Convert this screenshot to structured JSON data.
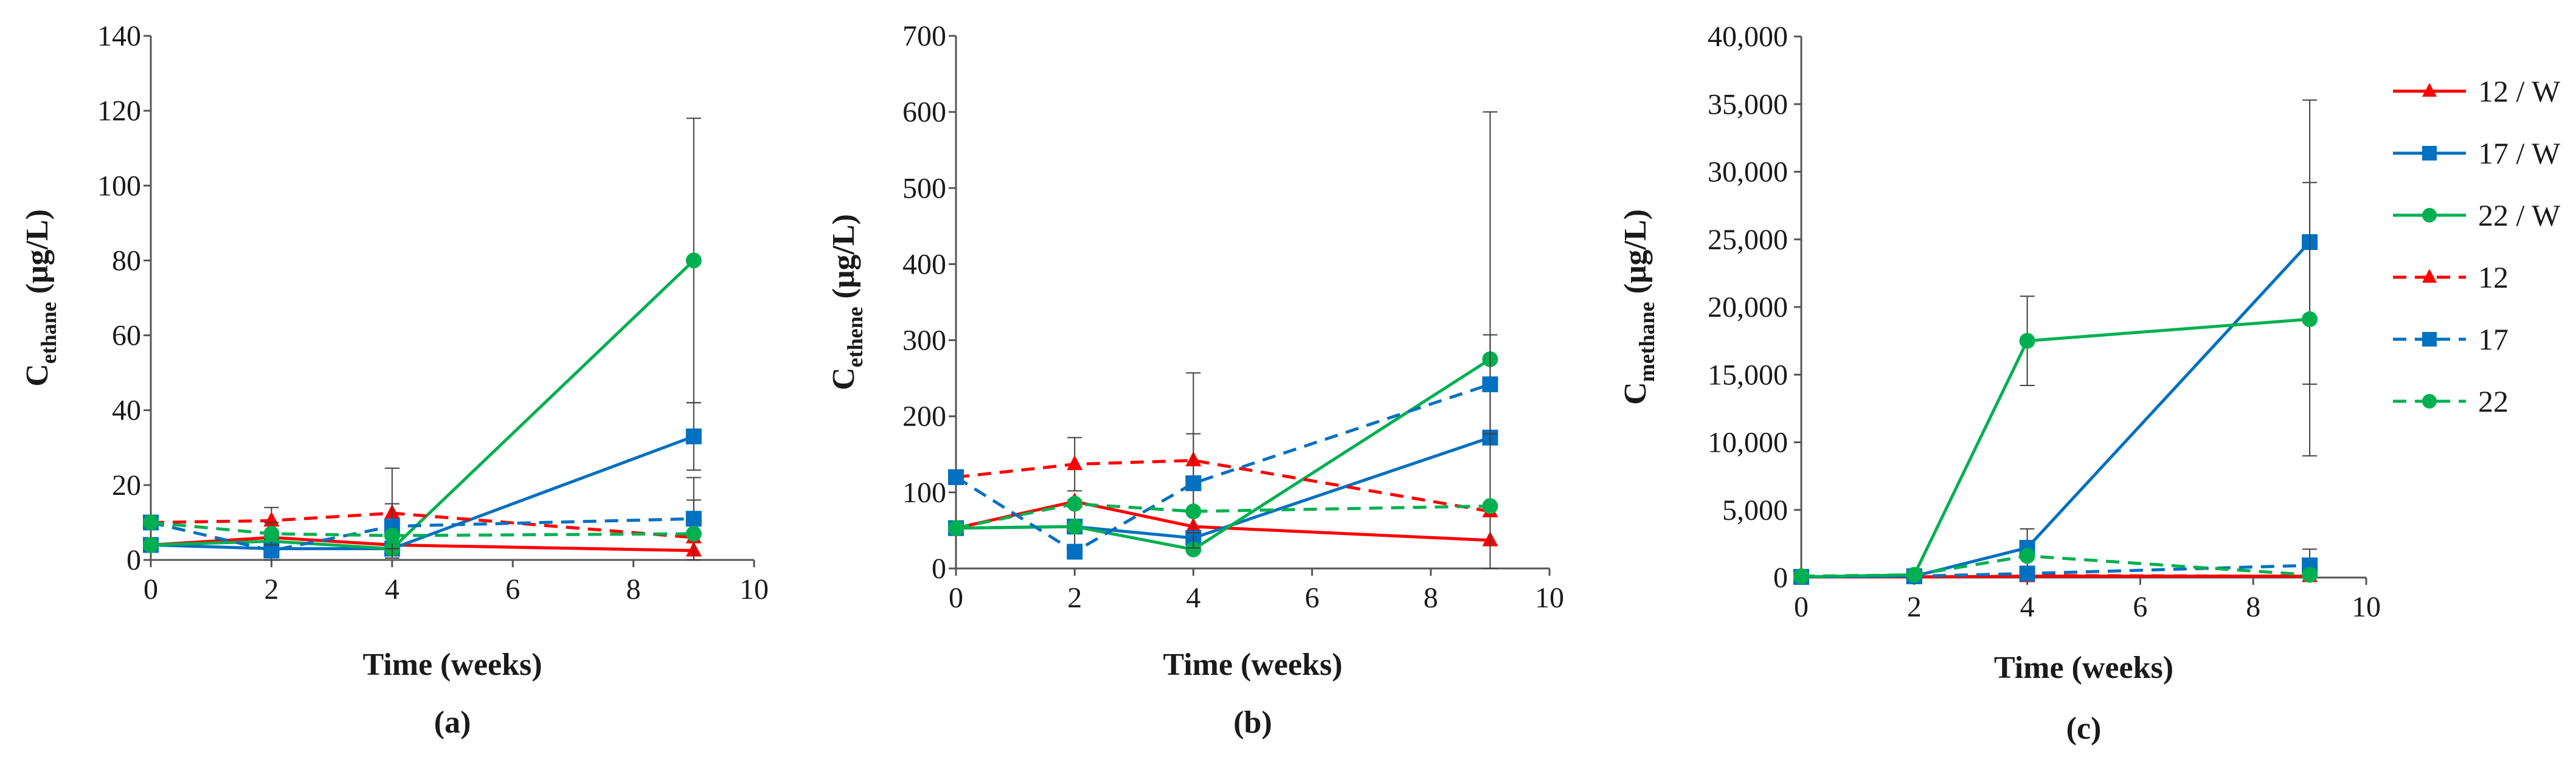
{
  "colors": {
    "red": "#ff0000",
    "blue": "#0070c0",
    "green": "#00b050",
    "axis": "#555555",
    "error": "#404040",
    "text": "#1a1a1a"
  },
  "legend": [
    {
      "label": "12 / W",
      "color": "red",
      "dashed": false,
      "marker": "triangle"
    },
    {
      "label": "17 / W",
      "color": "blue",
      "dashed": false,
      "marker": "square"
    },
    {
      "label": "22 / W",
      "color": "green",
      "dashed": false,
      "marker": "circle"
    },
    {
      "label": "12",
      "color": "red",
      "dashed": true,
      "marker": "triangle"
    },
    {
      "label": "17",
      "color": "blue",
      "dashed": true,
      "marker": "square"
    },
    {
      "label": "22",
      "color": "green",
      "dashed": true,
      "marker": "circle"
    }
  ],
  "chart_data": [
    {
      "type": "line",
      "panel_label": "(a)",
      "xlabel": "Time (weeks)",
      "ylabel_main": "C",
      "ylabel_sub": "ethane",
      "ylabel_unit": " (μg/L)",
      "xlim": [
        0,
        10
      ],
      "ylim": [
        0,
        140
      ],
      "xticks": [
        "0",
        "2",
        "4",
        "6",
        "8",
        "10"
      ],
      "yticks": [
        "0",
        "20",
        "40",
        "60",
        "80",
        "100",
        "120",
        "140"
      ],
      "x": [
        0,
        2,
        4,
        9
      ],
      "series": [
        {
          "name": "12 / W",
          "color": "red",
          "dashed": false,
          "marker": "triangle",
          "values": [
            4,
            6,
            4,
            2.5
          ],
          "err": [
            null,
            null,
            null,
            null
          ]
        },
        {
          "name": "17 / W",
          "color": "blue",
          "dashed": false,
          "marker": "square",
          "values": [
            4,
            3,
            3,
            33
          ],
          "err": [
            null,
            null,
            null,
            9
          ]
        },
        {
          "name": "22 / W",
          "color": "green",
          "dashed": false,
          "marker": "circle",
          "values": [
            4,
            5,
            3,
            80
          ],
          "err": [
            null,
            null,
            null,
            38
          ]
        },
        {
          "name": "12",
          "color": "red",
          "dashed": true,
          "marker": "triangle",
          "values": [
            10,
            10.5,
            12.5,
            6
          ],
          "err": [
            null,
            3.5,
            12,
            10
          ]
        },
        {
          "name": "17",
          "color": "blue",
          "dashed": true,
          "marker": "square",
          "values": [
            10,
            2.5,
            9,
            11
          ],
          "err": [
            null,
            3,
            6,
            11
          ]
        },
        {
          "name": "22",
          "color": "green",
          "dashed": true,
          "marker": "circle",
          "values": [
            10,
            7,
            6.5,
            7
          ],
          "err": [
            null,
            3,
            null,
            null
          ]
        }
      ]
    },
    {
      "type": "line",
      "panel_label": "(b)",
      "xlabel": "Time (weeks)",
      "ylabel_main": "C",
      "ylabel_sub": "ethene",
      "ylabel_unit": " (μg/L)",
      "xlim": [
        0,
        10
      ],
      "ylim": [
        0,
        700
      ],
      "xticks": [
        "0",
        "2",
        "4",
        "6",
        "8",
        "10"
      ],
      "yticks": [
        "0",
        "100",
        "200",
        "300",
        "400",
        "500",
        "600",
        "700"
      ],
      "x": [
        0,
        2,
        4,
        9
      ],
      "series": [
        {
          "name": "12 / W",
          "color": "red",
          "dashed": false,
          "marker": "triangle",
          "values": [
            53,
            88,
            55,
            37
          ],
          "err": [
            null,
            null,
            null,
            null
          ]
        },
        {
          "name": "17 / W",
          "color": "blue",
          "dashed": false,
          "marker": "square",
          "values": [
            53,
            55,
            40,
            172
          ],
          "err": [
            null,
            35,
            null,
            null
          ]
        },
        {
          "name": "22 / W",
          "color": "green",
          "dashed": false,
          "marker": "circle",
          "values": [
            53,
            55,
            25,
            275
          ],
          "err": [
            null,
            null,
            null,
            325
          ]
        },
        {
          "name": "12",
          "color": "red",
          "dashed": true,
          "marker": "triangle",
          "values": [
            120,
            137,
            142,
            75
          ],
          "err": [
            null,
            35,
            115,
            null
          ]
        },
        {
          "name": "17",
          "color": "blue",
          "dashed": true,
          "marker": "square",
          "values": [
            120,
            22,
            112,
            242
          ],
          "err": [
            null,
            null,
            65,
            65
          ]
        },
        {
          "name": "22",
          "color": "green",
          "dashed": true,
          "marker": "circle",
          "values": [
            53,
            85,
            75,
            82
          ],
          "err": [
            null,
            null,
            null,
            null
          ]
        }
      ]
    },
    {
      "type": "line",
      "panel_label": "(c)",
      "xlabel": "Time (weeks)",
      "ylabel_main": "C",
      "ylabel_sub": "methane",
      "ylabel_unit": " (μg/L)",
      "xlim": [
        0,
        10
      ],
      "ylim": [
        0,
        40000
      ],
      "xticks": [
        "0",
        "2",
        "4",
        "6",
        "8",
        "10"
      ],
      "yticks": [
        "0",
        "5,000",
        "10,000",
        "15,000",
        "20,000",
        "25,000",
        "30,000",
        "35,000",
        "40,000"
      ],
      "x": [
        0,
        2,
        4,
        9
      ],
      "series": [
        {
          "name": "12 / W",
          "color": "red",
          "dashed": false,
          "marker": "triangle",
          "values": [
            50,
            50,
            100,
            100
          ],
          "err": [
            null,
            null,
            null,
            null
          ]
        },
        {
          "name": "17 / W",
          "color": "blue",
          "dashed": false,
          "marker": "square",
          "values": [
            50,
            100,
            2200,
            24800
          ],
          "err": [
            null,
            null,
            1400,
            10500
          ]
        },
        {
          "name": "22 / W",
          "color": "green",
          "dashed": false,
          "marker": "circle",
          "values": [
            50,
            200,
            17500,
            19100
          ],
          "err": [
            null,
            null,
            3300,
            10100
          ]
        },
        {
          "name": "12",
          "color": "red",
          "dashed": true,
          "marker": "triangle",
          "values": [
            50,
            50,
            150,
            100
          ],
          "err": [
            null,
            null,
            null,
            null
          ]
        },
        {
          "name": "17",
          "color": "blue",
          "dashed": true,
          "marker": "square",
          "values": [
            50,
            100,
            300,
            900
          ],
          "err": [
            null,
            null,
            null,
            1200
          ]
        },
        {
          "name": "22",
          "color": "green",
          "dashed": true,
          "marker": "circle",
          "values": [
            100,
            200,
            1600,
            200
          ],
          "err": [
            null,
            null,
            null,
            null
          ]
        }
      ]
    }
  ]
}
